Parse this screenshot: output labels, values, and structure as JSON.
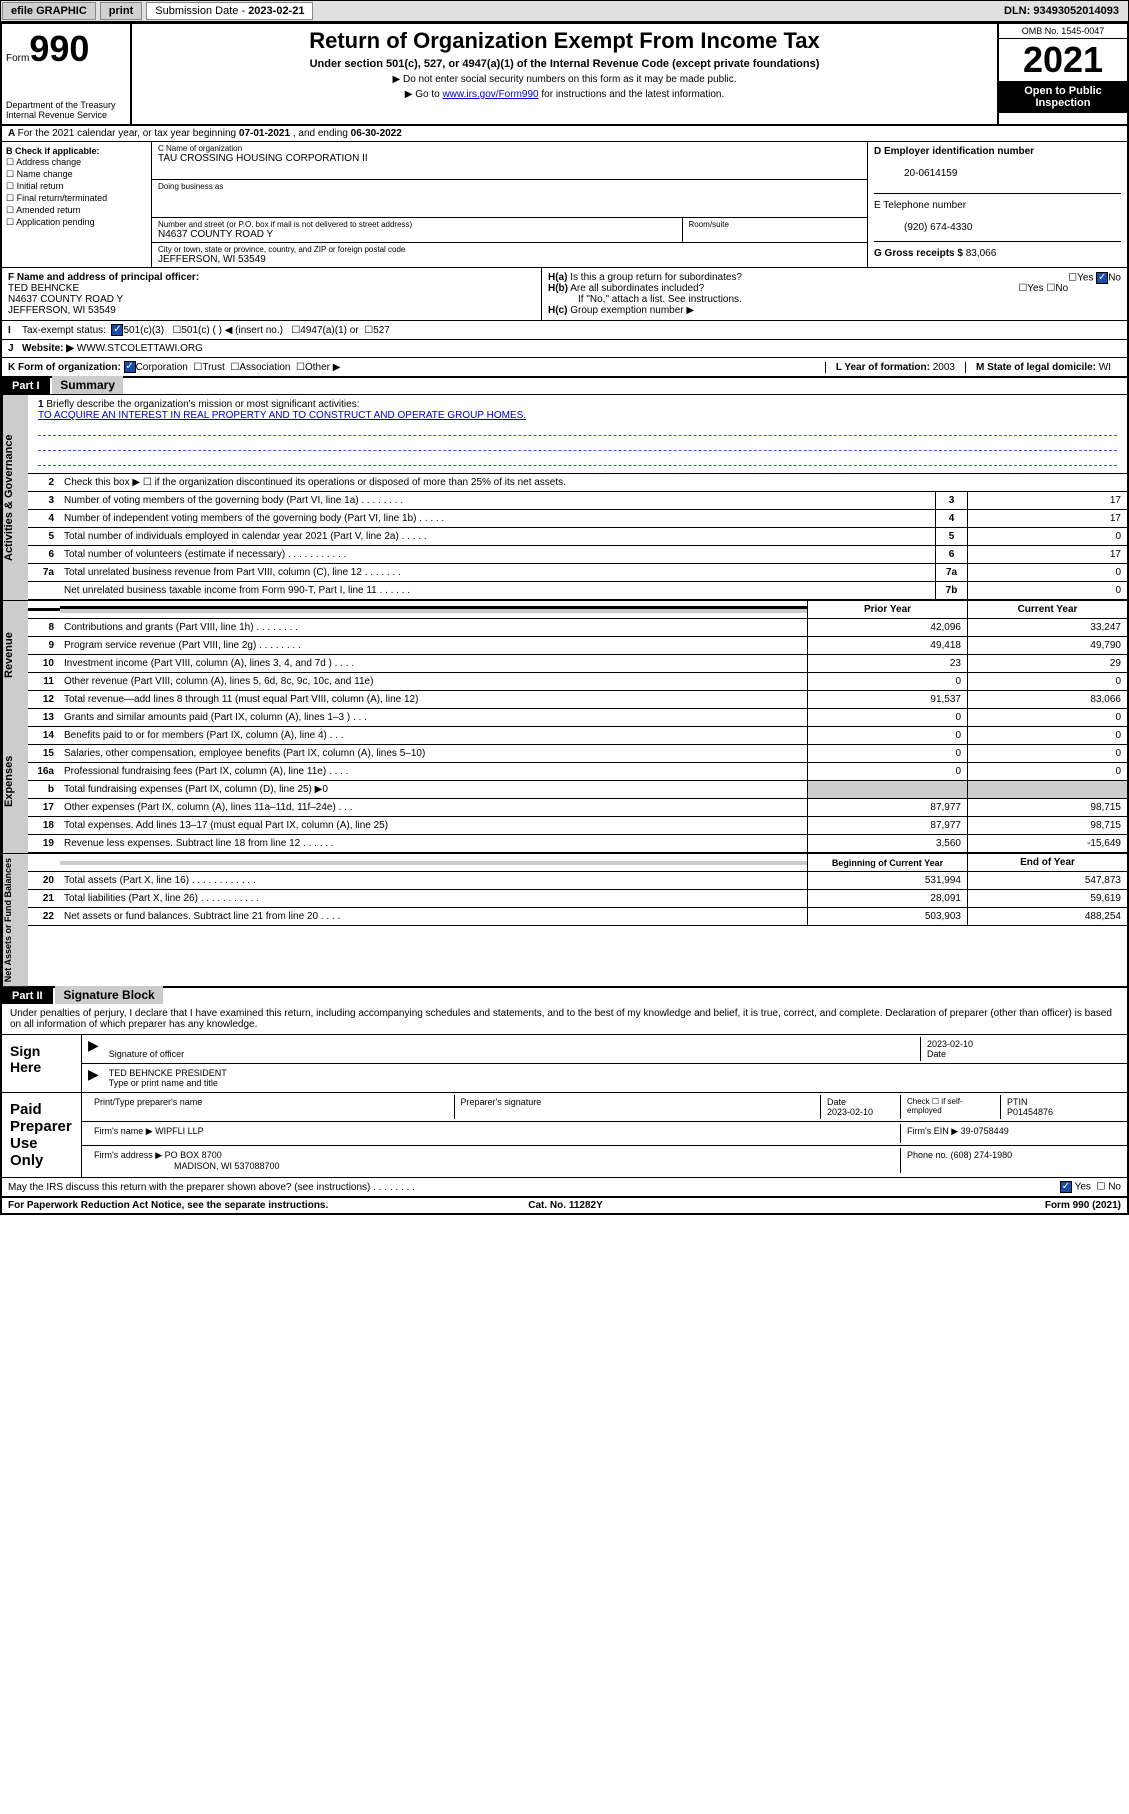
{
  "toolbar": {
    "efile": "efile GRAPHIC",
    "print": "print",
    "submission_label": "Submission Date - ",
    "submission_date": "2023-02-21",
    "dln_label": "DLN: ",
    "dln": "93493052014093"
  },
  "header": {
    "form_prefix": "Form",
    "form_num": "990",
    "title": "Return of Organization Exempt From Income Tax",
    "subtitle": "Under section 501(c), 527, or 4947(a)(1) of the Internal Revenue Code (except private foundations)",
    "note1": "▶ Do not enter social security numbers on this form as it may be made public.",
    "note2_pre": "▶ Go to ",
    "note2_link": "www.irs.gov/Form990",
    "note2_post": " for instructions and the latest information.",
    "dept": "Department of the Treasury",
    "irs": "Internal Revenue Service",
    "omb": "OMB No. 1545-0047",
    "year": "2021",
    "open": "Open to Public Inspection"
  },
  "section_a": {
    "text_pre": "For the 2021 calendar year, or tax year beginning ",
    "begin": "07-01-2021",
    "mid": " , and ending ",
    "end": "06-30-2022"
  },
  "check_b": {
    "title": "B Check if applicable:",
    "items": [
      "Address change",
      "Name change",
      "Initial return",
      "Final return/terminated",
      "Amended return",
      "Application pending"
    ]
  },
  "block_c": {
    "name_label": "C Name of organization",
    "name": "TAU CROSSING HOUSING CORPORATION II",
    "dba_label": "Doing business as",
    "dba": "",
    "street_label": "Number and street (or P.O. box if mail is not delivered to street address)",
    "room_label": "Room/suite",
    "street": "N4637 COUNTY ROAD Y",
    "city_label": "City or town, state or province, country, and ZIP or foreign postal code",
    "city": "JEFFERSON, WI  53549"
  },
  "block_d": {
    "label": "D Employer identification number",
    "ein": "20-0614159"
  },
  "block_e": {
    "label": "E Telephone number",
    "phone": "(920) 674-4330"
  },
  "block_g": {
    "label": "G Gross receipts $ ",
    "val": "83,066"
  },
  "block_f": {
    "label": "F  Name and address of principal officer:",
    "name": "TED BEHNCKE",
    "addr1": "N4637 COUNTY ROAD Y",
    "addr2": "JEFFERSON, WI  53549"
  },
  "block_h": {
    "a": "Is this a group return for subordinates?",
    "b": "Are all subordinates included?",
    "b_note": "If \"No,\" attach a list. See instructions.",
    "c": "Group exemption number ▶"
  },
  "row_i": {
    "label": "Tax-exempt status:",
    "o1": "501(c)(3)",
    "o2": "501(c) (   ) ◀ (insert no.)",
    "o3": "4947(a)(1) or",
    "o4": "527"
  },
  "row_j": {
    "label": "Website: ▶",
    "val": "WWW.STCOLETTAWI.ORG"
  },
  "row_k": {
    "label": "K Form of organization:",
    "o1": "Corporation",
    "o2": "Trust",
    "o3": "Association",
    "o4": "Other ▶"
  },
  "row_l": {
    "label": "L Year of formation: ",
    "val": "2003"
  },
  "row_m": {
    "label": "M State of legal domicile: ",
    "val": "WI"
  },
  "part1": {
    "hdr": "Part I",
    "title": "Summary",
    "q1": "Briefly describe the organization's mission or most significant activities:",
    "mission": "TO ACQUIRE AN INTEREST IN REAL PROPERTY AND TO CONSTRUCT AND OPERATE GROUP HOMES.",
    "q2": "Check this box ▶ ☐  if the organization discontinued its operations or disposed of more than 25% of its net assets."
  },
  "gov_lines": [
    {
      "n": "3",
      "t": "Number of voting members of the governing body (Part VI, line 1a)   .    .    .    .    .    .    .    .",
      "box": "3",
      "v": "17"
    },
    {
      "n": "4",
      "t": "Number of independent voting members of the governing body (Part VI, line 1b)    .    .    .    .    .",
      "box": "4",
      "v": "17"
    },
    {
      "n": "5",
      "t": "Total number of individuals employed in calendar year 2021 (Part V, line 2a)    .    .    .    .    .",
      "box": "5",
      "v": "0"
    },
    {
      "n": "6",
      "t": "Total number of volunteers (estimate if necessary)   .    .    .    .    .    .    .    .    .    .    .",
      "box": "6",
      "v": "17"
    },
    {
      "n": "7a",
      "t": "Total unrelated business revenue from Part VIII, column (C), line 12   .    .    .    .    .    .    .",
      "box": "7a",
      "v": "0"
    },
    {
      "n": "",
      "t": "Net unrelated business taxable income from Form 990-T, Part I, line 11    .    .    .    .    .    .",
      "box": "7b",
      "v": "0"
    }
  ],
  "rev_hdr": {
    "prior": "Prior Year",
    "cur": "Current Year"
  },
  "rev_lines": [
    {
      "n": "8",
      "t": "Contributions and grants (Part VIII, line 1h)    .    .    .    .    .    .    .    .",
      "p": "42,096",
      "c": "33,247"
    },
    {
      "n": "9",
      "t": "Program service revenue (Part VIII, line 2g)    .    .    .    .    .    .    .    .",
      "p": "49,418",
      "c": "49,790"
    },
    {
      "n": "10",
      "t": "Investment income (Part VIII, column (A), lines 3, 4, and 7d )    .    .    .    .",
      "p": "23",
      "c": "29"
    },
    {
      "n": "11",
      "t": "Other revenue (Part VIII, column (A), lines 5, 6d, 8c, 9c, 10c, and 11e)",
      "p": "0",
      "c": "0"
    },
    {
      "n": "12",
      "t": "Total revenue—add lines 8 through 11 (must equal Part VIII, column (A), line 12)",
      "p": "91,537",
      "c": "83,066"
    }
  ],
  "exp_lines": [
    {
      "n": "13",
      "t": "Grants and similar amounts paid (Part IX, column (A), lines 1–3 )    .    .    .",
      "p": "0",
      "c": "0"
    },
    {
      "n": "14",
      "t": "Benefits paid to or for members (Part IX, column (A), line 4)    .    .    .",
      "p": "0",
      "c": "0"
    },
    {
      "n": "15",
      "t": "Salaries, other compensation, employee benefits (Part IX, column (A), lines 5–10)",
      "p": "0",
      "c": "0"
    },
    {
      "n": "16a",
      "t": "Professional fundraising fees (Part IX, column (A), line 11e)    .    .    .    .",
      "p": "0",
      "c": "0"
    },
    {
      "n": "b",
      "t": "Total fundraising expenses (Part IX, column (D), line 25) ▶0",
      "p": "",
      "c": "",
      "grey": true
    },
    {
      "n": "17",
      "t": "Other expenses (Part IX, column (A), lines 11a–11d, 11f–24e)    .    .    .",
      "p": "87,977",
      "c": "98,715"
    },
    {
      "n": "18",
      "t": "Total expenses. Add lines 13–17 (must equal Part IX, column (A), line 25)",
      "p": "87,977",
      "c": "98,715"
    },
    {
      "n": "19",
      "t": "Revenue less expenses. Subtract line 18 from line 12   .    .    .    .    .    .",
      "p": "3,560",
      "c": "-15,649"
    }
  ],
  "net_hdr": {
    "prior": "Beginning of Current Year",
    "cur": "End of Year"
  },
  "net_lines": [
    {
      "n": "20",
      "t": "Total assets (Part X, line 16)   .    .    .    .    .    .    .    .    .    .    .    .",
      "p": "531,994",
      "c": "547,873"
    },
    {
      "n": "21",
      "t": "Total liabilities (Part X, line 26)   .    .    .    .    .    .    .    .    .    .    .",
      "p": "28,091",
      "c": "59,619"
    },
    {
      "n": "22",
      "t": "Net assets or fund balances. Subtract line 21 from line 20    .    .    .    .",
      "p": "503,903",
      "c": "488,254"
    }
  ],
  "part2": {
    "hdr": "Part II",
    "title": "Signature Block"
  },
  "perjury": "Under penalties of perjury, I declare that I have examined this return, including accompanying schedules and statements, and to the best of my knowledge and belief, it is true, correct, and complete. Declaration of preparer (other than officer) is based on all information of which preparer has any knowledge.",
  "sign": {
    "here": "Sign Here",
    "sig_label": "Signature of officer",
    "date": "2023-02-10",
    "date_label": "Date",
    "name": "TED BEHNCKE PRESIDENT",
    "name_label": "Type or print name and title"
  },
  "paid": {
    "title": "Paid Preparer Use Only",
    "prep_name_label": "Print/Type preparer's name",
    "prep_sig_label": "Preparer's signature",
    "date_label": "Date",
    "date": "2023-02-10",
    "check_label": "Check ☐ if self-employed",
    "ptin_label": "PTIN",
    "ptin": "P01454876",
    "firm_name_label": "Firm's name    ▶",
    "firm_name": "WIPFLI LLP",
    "firm_ein_label": "Firm's EIN ▶",
    "firm_ein": "39-0758449",
    "firm_addr_label": "Firm's address ▶",
    "firm_addr1": "PO BOX 8700",
    "firm_addr2": "MADISON, WI  537088700",
    "phone_label": "Phone no. ",
    "phone": "(608) 274-1980"
  },
  "may_discuss": "May the IRS discuss this return with the preparer shown above? (see instructions)    .    .    .    .    .    .    .    .",
  "footer": {
    "left": "For Paperwork Reduction Act Notice, see the separate instructions.",
    "mid": "Cat. No. 11282Y",
    "right": "Form 990 (2021)"
  }
}
